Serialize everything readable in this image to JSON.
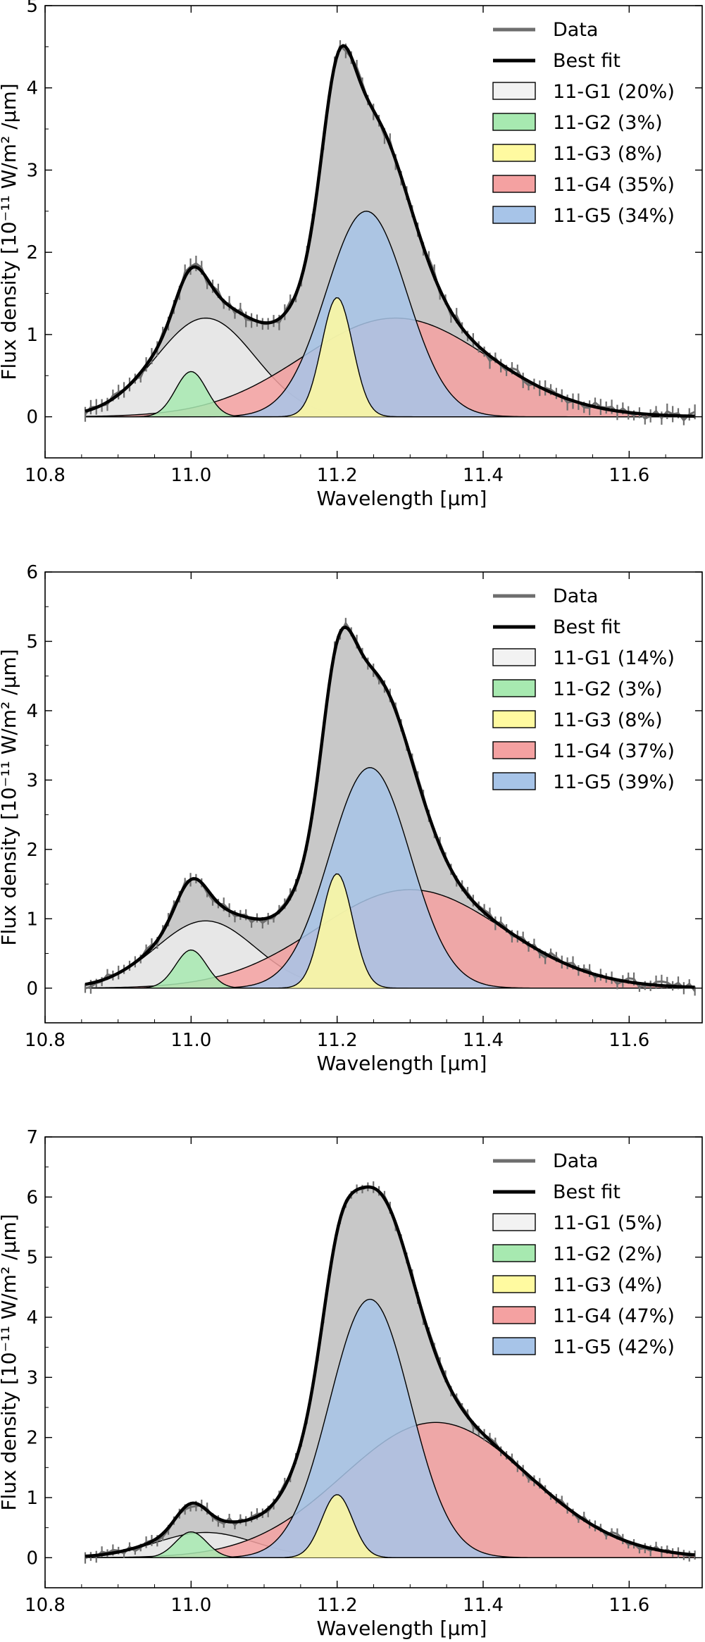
{
  "chart_data": [
    {
      "type": "area",
      "xlabel": "Wavelength [μm]",
      "ylabel": "Flux density [10⁻¹¹ W/m² /μm]",
      "xlim": [
        10.8,
        11.7
      ],
      "ylim": [
        -0.5,
        5
      ],
      "xticks": [
        10.8,
        11.0,
        11.2,
        11.4,
        11.6
      ],
      "yticks": [
        0,
        1,
        2,
        3,
        4,
        5
      ],
      "tick_labels_x": [
        "10.8",
        "11.0",
        "11.2",
        "11.4",
        "11.6"
      ],
      "tick_labels_y": [
        "0",
        "1",
        "2",
        "3",
        "4",
        "5"
      ],
      "x_range_data": [
        10.855,
        11.69
      ],
      "legend_position": "top-right",
      "legend": [
        "Data",
        "Best fit",
        "11-G1 (20%)",
        "11-G2 (3%)",
        "11-G3 (8%)",
        "11-G4 (35%)",
        "11-G5 (34%)"
      ],
      "components": [
        {
          "name": "11-G1 (20%)",
          "center": 11.02,
          "amplitude": 1.2,
          "fwhm": 0.16,
          "color": "#f2f2f2"
        },
        {
          "name": "11-G2 (3%)",
          "center": 11.0,
          "amplitude": 0.55,
          "fwhm": 0.05,
          "color": "#a7e9b0"
        },
        {
          "name": "11-G3 (8%)",
          "center": 11.2,
          "amplitude": 1.45,
          "fwhm": 0.05,
          "color": "#fffaa0"
        },
        {
          "name": "11-G4 (35%)",
          "center": 11.28,
          "amplitude": 1.2,
          "fwhm": 0.3,
          "color": "#f4a1a1"
        },
        {
          "name": "11-G5 (34%)",
          "center": 11.24,
          "amplitude": 2.5,
          "fwhm": 0.13,
          "color": "#a7c4e8"
        }
      ]
    },
    {
      "type": "area",
      "xlabel": "Wavelength [μm]",
      "ylabel": "Flux density [10⁻¹¹ W/m² /μm]",
      "xlim": [
        10.8,
        11.7
      ],
      "ylim": [
        -0.5,
        6
      ],
      "xticks": [
        10.8,
        11.0,
        11.2,
        11.4,
        11.6
      ],
      "yticks": [
        0,
        1,
        2,
        3,
        4,
        5,
        6
      ],
      "tick_labels_x": [
        "10.8",
        "11.0",
        "11.2",
        "11.4",
        "11.6"
      ],
      "tick_labels_y": [
        "0",
        "1",
        "2",
        "3",
        "4",
        "5",
        "6"
      ],
      "x_range_data": [
        10.855,
        11.69
      ],
      "legend_position": "top-right",
      "legend": [
        "Data",
        "Best fit",
        "11-G1 (14%)",
        "11-G2 (3%)",
        "11-G3 (8%)",
        "11-G4 (37%)",
        "11-G5 (39%)"
      ],
      "components": [
        {
          "name": "11-G1 (14%)",
          "center": 11.02,
          "amplitude": 0.97,
          "fwhm": 0.16,
          "color": "#f2f2f2"
        },
        {
          "name": "11-G2 (3%)",
          "center": 11.0,
          "amplitude": 0.55,
          "fwhm": 0.05,
          "color": "#a7e9b0"
        },
        {
          "name": "11-G3 (8%)",
          "center": 11.2,
          "amplitude": 1.65,
          "fwhm": 0.05,
          "color": "#fffaa0"
        },
        {
          "name": "11-G4 (37%)",
          "center": 11.3,
          "amplitude": 1.42,
          "fwhm": 0.3,
          "color": "#f4a1a1"
        },
        {
          "name": "11-G5 (39%)",
          "center": 11.245,
          "amplitude": 3.18,
          "fwhm": 0.13,
          "color": "#a7c4e8"
        }
      ]
    },
    {
      "type": "area",
      "xlabel": "Wavelength [μm]",
      "ylabel": "Flux density [10⁻¹¹ W/m² /μm]",
      "xlim": [
        10.8,
        11.7
      ],
      "ylim": [
        -0.5,
        7
      ],
      "xticks": [
        10.8,
        11.0,
        11.2,
        11.4,
        11.6
      ],
      "yticks": [
        0,
        1,
        2,
        3,
        4,
        5,
        6,
        7
      ],
      "tick_labels_x": [
        "10.8",
        "11.0",
        "11.2",
        "11.4",
        "11.6"
      ],
      "tick_labels_y": [
        "0",
        "1",
        "2",
        "3",
        "4",
        "5",
        "6",
        "7"
      ],
      "x_range_data": [
        10.855,
        11.69
      ],
      "legend_position": "top-right",
      "legend": [
        "Data",
        "Best fit",
        "11-G1 (5%)",
        "11-G2 (2%)",
        "11-G3 (4%)",
        "11-G4 (47%)",
        "11-G5 (42%)"
      ],
      "components": [
        {
          "name": "11-G1 (5%)",
          "center": 11.02,
          "amplitude": 0.42,
          "fwhm": 0.16,
          "color": "#f2f2f2"
        },
        {
          "name": "11-G2 (2%)",
          "center": 11.0,
          "amplitude": 0.43,
          "fwhm": 0.05,
          "color": "#a7e9b0"
        },
        {
          "name": "11-G3 (4%)",
          "center": 11.2,
          "amplitude": 1.05,
          "fwhm": 0.05,
          "color": "#fffaa0"
        },
        {
          "name": "11-G4 (47%)",
          "center": 11.335,
          "amplitude": 2.25,
          "fwhm": 0.3,
          "color": "#f4a1a1"
        },
        {
          "name": "11-G5 (42%)",
          "center": 11.245,
          "amplitude": 4.3,
          "fwhm": 0.13,
          "color": "#a7c4e8"
        }
      ]
    }
  ],
  "colors": {
    "total_fill": "#c8c8c8",
    "data_line": "#6e6e6e",
    "best_fit": "#000000"
  }
}
